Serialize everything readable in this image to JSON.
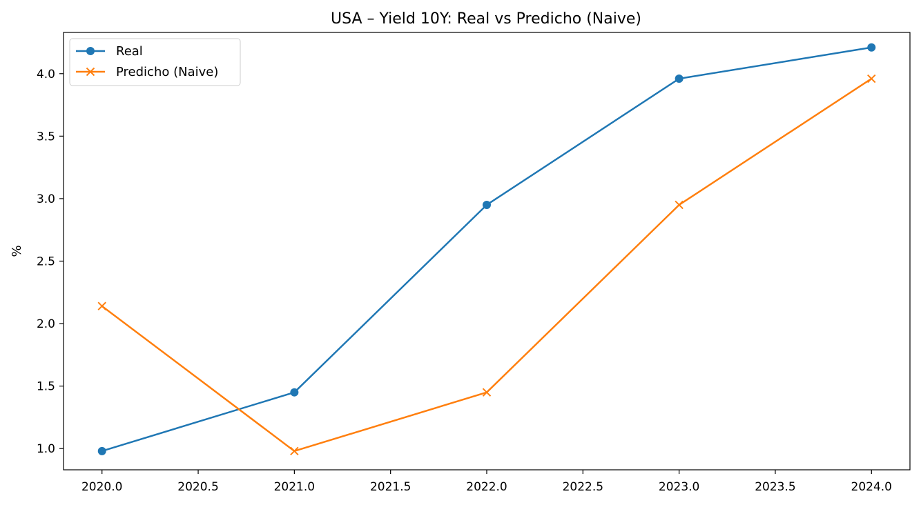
{
  "chart_data": {
    "type": "line",
    "title": "USA – Yield 10Y: Real vs Predicho (Naive)",
    "xlabel": "",
    "ylabel": "%",
    "xlim": [
      2019.8,
      2024.2
    ],
    "ylim": [
      0.83,
      4.33
    ],
    "x_ticks": [
      2020.0,
      2020.5,
      2021.0,
      2021.5,
      2022.0,
      2022.5,
      2023.0,
      2023.5,
      2024.0
    ],
    "x_tick_labels": [
      "2020.0",
      "2020.5",
      "2021.0",
      "2021.5",
      "2022.0",
      "2022.5",
      "2023.0",
      "2023.5",
      "2024.0"
    ],
    "y_ticks": [
      1.0,
      1.5,
      2.0,
      2.5,
      3.0,
      3.5,
      4.0
    ],
    "y_tick_labels": [
      "1.0",
      "1.5",
      "2.0",
      "2.5",
      "3.0",
      "3.5",
      "4.0"
    ],
    "grid": false,
    "legend_position": "top-left",
    "series": [
      {
        "name": "Real",
        "color": "#1f77b4",
        "marker": "circle",
        "x": [
          2020,
          2021,
          2022,
          2023,
          2024
        ],
        "y": [
          0.98,
          1.45,
          2.95,
          3.96,
          4.21
        ]
      },
      {
        "name": "Predicho (Naive)",
        "color": "#ff7f0e",
        "marker": "x",
        "x": [
          2020,
          2021,
          2022,
          2023,
          2024
        ],
        "y": [
          2.14,
          0.98,
          1.45,
          2.95,
          3.96
        ]
      }
    ]
  }
}
